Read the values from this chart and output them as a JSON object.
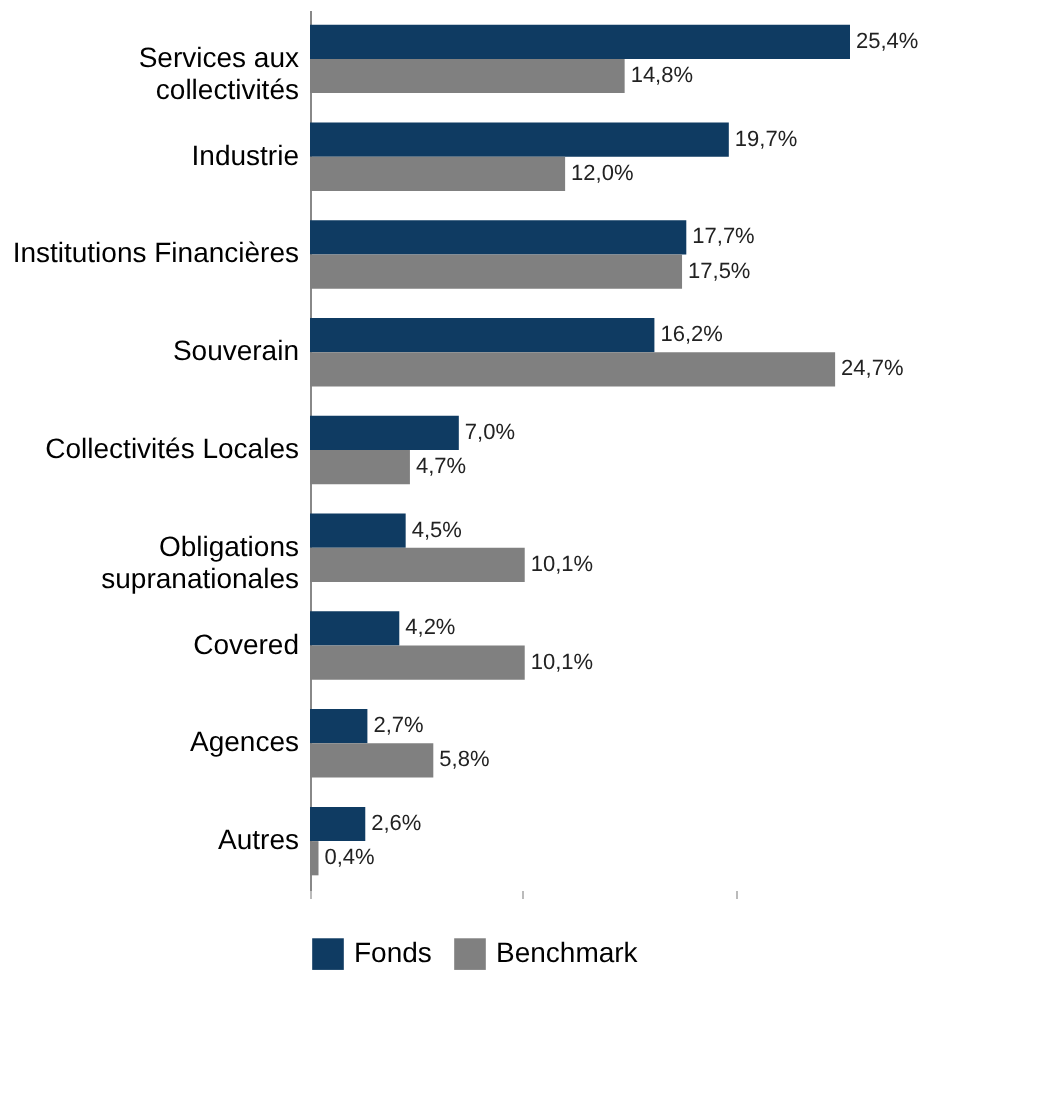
{
  "chart_data": {
    "type": "bar",
    "orientation": "horizontal",
    "categories": [
      "Services aux collectivités",
      "Industrie",
      "Institutions Financières",
      "Souverain",
      "Collectivités Locales",
      "Obligations supranationales",
      "Covered",
      "Agences",
      "Autres"
    ],
    "series": [
      {
        "name": "Fonds",
        "color": "#0f3b62",
        "values": [
          25.4,
          19.7,
          17.7,
          16.2,
          7.0,
          4.5,
          4.2,
          2.7,
          2.6
        ],
        "value_labels": [
          "25,4%",
          "19,7%",
          "17,7%",
          "16,2%",
          "7,0%",
          "4,5%",
          "4,2%",
          "2,7%",
          "2,6%"
        ]
      },
      {
        "name": "Benchmark",
        "color": "#808080",
        "values": [
          14.8,
          12.0,
          17.5,
          24.7,
          4.7,
          10.1,
          10.1,
          5.8,
          0.4
        ],
        "value_labels": [
          "14,8%",
          "12,0%",
          "17,5%",
          "24,7%",
          "4,7%",
          "10,1%",
          "10,1%",
          "5,8%",
          "0,4%"
        ]
      }
    ],
    "xticks": [
      {
        "value": 0,
        "label": null
      },
      {
        "value": 10,
        "label": null
      },
      {
        "value": 20,
        "label": null
      }
    ],
    "tick_labels": "y",
    "grid": false,
    "legend": "bottom"
  }
}
